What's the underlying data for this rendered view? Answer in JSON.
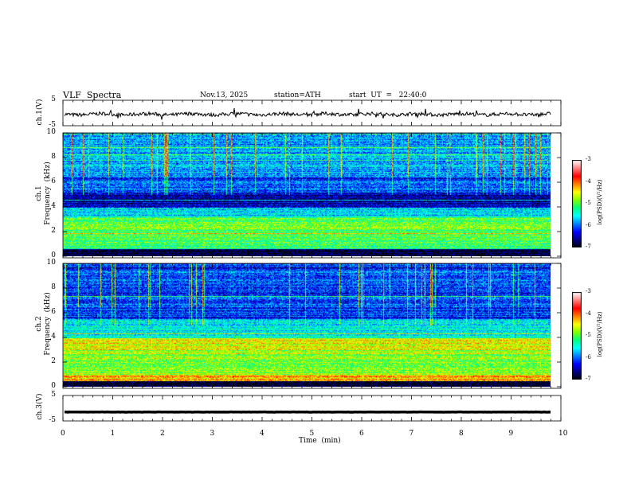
{
  "header": {
    "title": "VLF  Spectra",
    "date": "Nov.13, 2025",
    "station": "station=ATH",
    "start": "start  UT  =   22:40:0"
  },
  "colors": {
    "colormap": [
      "#000000",
      "#000080",
      "#0000ff",
      "#0080ff",
      "#00ffff",
      "#00ff80",
      "#80ff00",
      "#ffff00",
      "#ff8000",
      "#ff0000",
      "#ff8080",
      "#ffffff"
    ],
    "trace": "#000000"
  },
  "chart_data": [
    {
      "type": "line",
      "name": "ch1-waveform",
      "ylabel": "ch.1(V)",
      "ylim": [
        -5,
        5
      ],
      "yticks": [
        "5",
        "-5"
      ],
      "xlim": [
        0,
        10
      ],
      "approx_range": [
        -2,
        1
      ],
      "note": "noisy waveform centered near -0.5 V"
    },
    {
      "type": "heatmap",
      "name": "ch1-spectrogram",
      "ylabel": "ch.1\nFrequency  (kHz)",
      "ylim": [
        0,
        10
      ],
      "yticks": [
        "0",
        "2",
        "4",
        "6",
        "8",
        "10"
      ],
      "xlim": [
        0,
        9.8
      ],
      "colorbar": {
        "label": "log(PSD)(V²/Hz)",
        "range": [
          -7,
          -3
        ],
        "ticks": [
          "-3",
          "-4",
          "-5",
          "-6",
          "-7"
        ]
      },
      "bands_logpsd": [
        {
          "f_range_khz": [
            0,
            0.6
          ],
          "level": -6.9
        },
        {
          "f_range_khz": [
            0.6,
            1.2
          ],
          "level": -5.2
        },
        {
          "f_range_khz": [
            1.2,
            3.2
          ],
          "level": -5.0
        },
        {
          "f_range_khz": [
            3.2,
            4.0
          ],
          "level": -5.6
        },
        {
          "f_range_khz": [
            4.0,
            5.2
          ],
          "level": -6.5
        },
        {
          "f_range_khz": [
            5.2,
            6.5
          ],
          "level": -6.0
        },
        {
          "f_range_khz": [
            6.5,
            10
          ],
          "level": -5.8
        }
      ]
    },
    {
      "type": "heatmap",
      "name": "ch2-spectrogram",
      "ylabel": "ch.2\nFrequency  (kHz)",
      "ylim": [
        0,
        10
      ],
      "yticks": [
        "0",
        "2",
        "4",
        "6",
        "8",
        "10"
      ],
      "xlim": [
        0,
        9.8
      ],
      "colorbar": {
        "label": "log(PSD)(V²/Hz)",
        "range": [
          -7,
          -3
        ],
        "ticks": [
          "-3",
          "-4",
          "-5",
          "-6",
          "-7"
        ]
      },
      "bands_logpsd": [
        {
          "f_range_khz": [
            0,
            0.5
          ],
          "level": -6.8
        },
        {
          "f_range_khz": [
            0.5,
            1.0
          ],
          "level": -4.2
        },
        {
          "f_range_khz": [
            1.0,
            3.0
          ],
          "level": -4.8
        },
        {
          "f_range_khz": [
            3.0,
            4.0
          ],
          "level": -4.5
        },
        {
          "f_range_khz": [
            4.0,
            5.5
          ],
          "level": -5.5
        },
        {
          "f_range_khz": [
            5.5,
            6.5
          ],
          "level": -6.2
        },
        {
          "f_range_khz": [
            6.5,
            10
          ],
          "level": -6.1
        }
      ]
    },
    {
      "type": "line",
      "name": "ch3-waveform",
      "ylabel": "ch.3(V)",
      "ylim": [
        -5,
        5
      ],
      "yticks": [
        "5",
        "-5"
      ],
      "xlim": [
        0,
        10
      ],
      "approx_level": -1.5,
      "note": "flat thick trace"
    }
  ],
  "xaxis": {
    "label": "Time  (min)",
    "ticks": [
      "0",
      "1",
      "2",
      "3",
      "4",
      "5",
      "6",
      "7",
      "8",
      "9",
      "10"
    ],
    "range": [
      0,
      10
    ]
  }
}
